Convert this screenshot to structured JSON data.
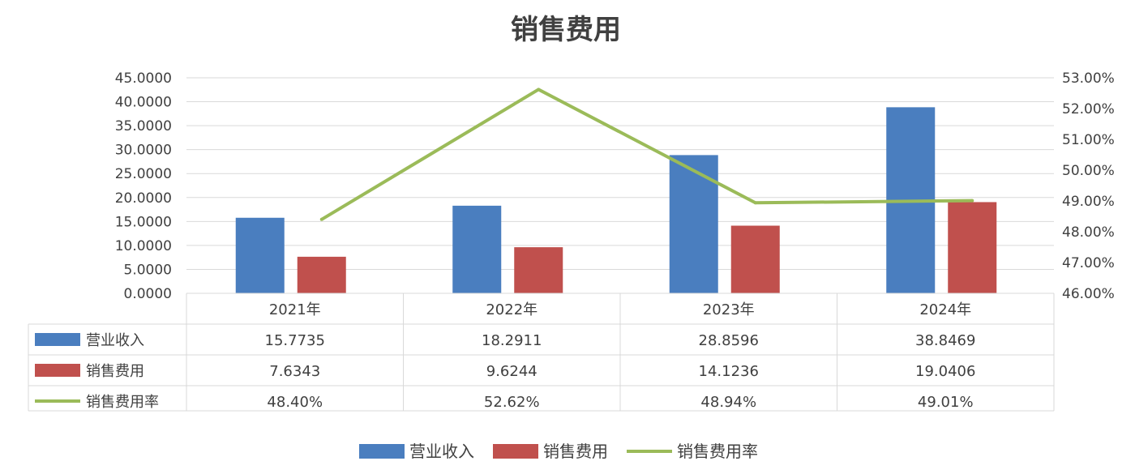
{
  "chart_data": {
    "type": "bar",
    "title": "销售费用",
    "categories": [
      "2021年",
      "2022年",
      "2023年",
      "2024年"
    ],
    "y_left": {
      "ylim": [
        0,
        45
      ],
      "ticks": [
        "0.0000",
        "5.0000",
        "10.0000",
        "15.0000",
        "20.0000",
        "25.0000",
        "30.0000",
        "35.0000",
        "40.0000",
        "45.0000"
      ]
    },
    "y_right": {
      "ylim": [
        46,
        53
      ],
      "ticks": [
        "46.00%",
        "47.00%",
        "48.00%",
        "49.00%",
        "50.00%",
        "51.00%",
        "52.00%",
        "53.00%"
      ]
    },
    "grid": true,
    "legend_position": "bottom",
    "series": [
      {
        "name": "营业收入",
        "kind": "bar",
        "axis": "left",
        "color": "#4a7ebf",
        "values": [
          15.7735,
          18.2911,
          28.8596,
          38.8469
        ],
        "labels": [
          "15.7735",
          "18.2911",
          "28.8596",
          "38.8469"
        ]
      },
      {
        "name": "销售费用",
        "kind": "bar",
        "axis": "left",
        "color": "#c0504d",
        "values": [
          7.6343,
          9.6244,
          14.1236,
          19.0406
        ],
        "labels": [
          "7.6343",
          "9.6244",
          "14.1236",
          "19.0406"
        ]
      },
      {
        "name": "销售费用率",
        "kind": "line",
        "axis": "right",
        "color": "#9bbb59",
        "values": [
          48.4,
          52.62,
          48.94,
          49.01
        ],
        "labels": [
          "48.40%",
          "52.62%",
          "48.94%",
          "49.01%"
        ]
      }
    ]
  }
}
